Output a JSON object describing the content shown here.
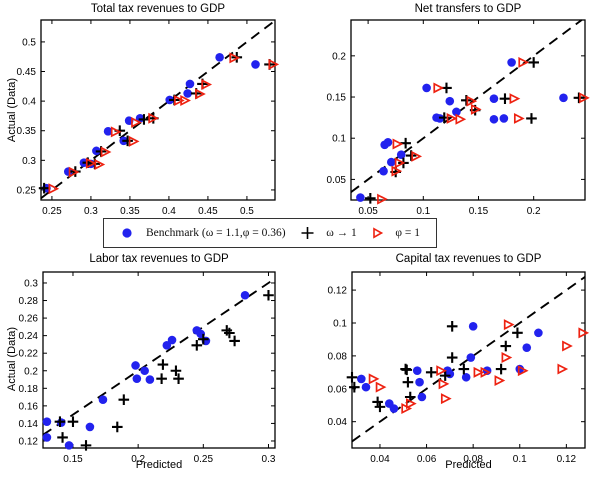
{
  "colors": {
    "benchmark": "#2222ee",
    "omega": "#000000",
    "phi": "#ee2211",
    "axis": "#000000"
  },
  "legend": {
    "items": [
      {
        "label": "Benchmark (ω = 1.1,φ = 0.36)",
        "marker": "circle"
      },
      {
        "label": "ω → 1",
        "marker": "plus"
      },
      {
        "label": "φ = 1",
        "marker": "triangle"
      }
    ]
  },
  "chart_data": [
    {
      "id": "total-tax-revenues",
      "type": "scatter",
      "title": "Total tax revenues to GDP",
      "xlabel": "",
      "ylabel": "Actual (Data)",
      "xlim": [
        0.236,
        0.536
      ],
      "ylim": [
        0.233,
        0.537
      ],
      "xticks": [
        0.25,
        0.3,
        0.35,
        0.4,
        0.45,
        0.5
      ],
      "xtick_labels": [
        "0.25",
        "0.3",
        "0.35",
        "0.4",
        "0.45",
        "0.5"
      ],
      "yticks": [
        0.25,
        0.3,
        0.35,
        0.4,
        0.45,
        0.5
      ],
      "ytick_labels": [
        "0.25",
        "0.3",
        "0.35",
        "0.4",
        "0.45",
        "0.5"
      ],
      "identity_line": true,
      "series": [
        {
          "name": "benchmark",
          "marker": "circle",
          "color": "#2222ee",
          "points": [
            [
              0.243,
              0.253
            ],
            [
              0.271,
              0.281
            ],
            [
              0.291,
              0.296
            ],
            [
              0.3,
              0.294
            ],
            [
              0.307,
              0.316
            ],
            [
              0.322,
              0.349
            ],
            [
              0.342,
              0.333
            ],
            [
              0.349,
              0.367
            ],
            [
              0.363,
              0.371
            ],
            [
              0.401,
              0.402
            ],
            [
              0.424,
              0.413
            ],
            [
              0.427,
              0.429
            ],
            [
              0.465,
              0.474
            ],
            [
              0.511,
              0.462
            ]
          ]
        },
        {
          "name": "omega-to-1",
          "marker": "plus",
          "color": "#000000",
          "points": [
            [
              0.24,
              0.253
            ],
            [
              0.28,
              0.281
            ],
            [
              0.296,
              0.296
            ],
            [
              0.305,
              0.294
            ],
            [
              0.313,
              0.315
            ],
            [
              0.337,
              0.35
            ],
            [
              0.347,
              0.333
            ],
            [
              0.368,
              0.369
            ],
            [
              0.38,
              0.371
            ],
            [
              0.407,
              0.402
            ],
            [
              0.435,
              0.413
            ],
            [
              0.443,
              0.429
            ],
            [
              0.487,
              0.474
            ],
            [
              0.529,
              0.462
            ]
          ]
        },
        {
          "name": "phi-1",
          "marker": "triangle",
          "color": "#ee2211",
          "points": [
            [
              0.251,
              0.252
            ],
            [
              0.277,
              0.28
            ],
            [
              0.299,
              0.295
            ],
            [
              0.31,
              0.293
            ],
            [
              0.318,
              0.314
            ],
            [
              0.331,
              0.348
            ],
            [
              0.354,
              0.332
            ],
            [
              0.357,
              0.364
            ],
            [
              0.379,
              0.371
            ],
            [
              0.412,
              0.401
            ],
            [
              0.42,
              0.401
            ],
            [
              0.439,
              0.412
            ],
            [
              0.447,
              0.428
            ],
            [
              0.483,
              0.473
            ],
            [
              0.533,
              0.462
            ]
          ]
        }
      ]
    },
    {
      "id": "net-transfers",
      "type": "scatter",
      "title": "Net transfers to GDP",
      "xlabel": "",
      "ylabel": "",
      "xlim": [
        0.0345,
        0.2465
      ],
      "ylim": [
        0.025,
        0.2435
      ],
      "xticks": [
        0.05,
        0.1,
        0.15,
        0.2
      ],
      "xtick_labels": [
        "0.05",
        "0.1",
        "0.15",
        "0.2"
      ],
      "yticks": [
        0.05,
        0.1,
        0.15,
        0.2
      ],
      "ytick_labels": [
        "0.05",
        "0.1",
        "0.15",
        "0.2"
      ],
      "identity_line": true,
      "series": [
        {
          "name": "benchmark",
          "marker": "circle",
          "color": "#2222ee",
          "points": [
            [
              0.043,
              0.028
            ],
            [
              0.064,
              0.06
            ],
            [
              0.065,
              0.092
            ],
            [
              0.068,
              0.095
            ],
            [
              0.071,
              0.071
            ],
            [
              0.08,
              0.08
            ],
            [
              0.103,
              0.161
            ],
            [
              0.112,
              0.125
            ],
            [
              0.115,
              0.124
            ],
            [
              0.124,
              0.145
            ],
            [
              0.13,
              0.132
            ],
            [
              0.164,
              0.148
            ],
            [
              0.164,
              0.123
            ],
            [
              0.173,
              0.124
            ],
            [
              0.18,
              0.192
            ],
            [
              0.227,
              0.149
            ]
          ]
        },
        {
          "name": "omega-to-1",
          "marker": "plus",
          "color": "#000000",
          "points": [
            [
              0.052,
              0.027
            ],
            [
              0.075,
              0.059
            ],
            [
              0.082,
              0.07
            ],
            [
              0.084,
              0.094
            ],
            [
              0.089,
              0.079
            ],
            [
              0.119,
              0.125
            ],
            [
              0.121,
              0.161
            ],
            [
              0.139,
              0.146
            ],
            [
              0.147,
              0.134
            ],
            [
              0.174,
              0.148
            ],
            [
              0.198,
              0.124
            ],
            [
              0.2,
              0.192
            ],
            [
              0.241,
              0.149
            ]
          ]
        },
        {
          "name": "phi-1",
          "marker": "triangle",
          "color": "#ee2211",
          "points": [
            [
              0.062,
              0.026
            ],
            [
              0.075,
              0.06
            ],
            [
              0.076,
              0.093
            ],
            [
              0.078,
              0.07
            ],
            [
              0.093,
              0.078
            ],
            [
              0.113,
              0.161
            ],
            [
              0.125,
              0.124
            ],
            [
              0.133,
              0.123
            ],
            [
              0.143,
              0.145
            ],
            [
              0.147,
              0.135
            ],
            [
              0.182,
              0.148
            ],
            [
              0.186,
              0.124
            ],
            [
              0.19,
              0.192
            ],
            [
              0.245,
              0.149
            ]
          ]
        }
      ]
    },
    {
      "id": "labor-tax-revenues",
      "type": "scatter",
      "title": "Labor tax revenues to GDP",
      "xlabel": "Predicted",
      "ylabel": "Actual (Data)",
      "xlim": [
        0.127,
        0.305
      ],
      "ylim": [
        0.112,
        0.3125
      ],
      "xticks": [
        0.15,
        0.2,
        0.25,
        0.3
      ],
      "xtick_labels": [
        "0.15",
        "0.2",
        "0.25",
        "0.3"
      ],
      "yticks": [
        0.12,
        0.14,
        0.16,
        0.18,
        0.2,
        0.22,
        0.24,
        0.26,
        0.28,
        0.3
      ],
      "ytick_labels": [
        "0.12",
        "0.14",
        "0.16",
        "0.18",
        "0.2",
        "0.22",
        "0.24",
        "0.26",
        "0.28",
        "0.3"
      ],
      "identity_line": true,
      "series": [
        {
          "name": "benchmark",
          "marker": "circle",
          "color": "#2222ee",
          "points": [
            [
              0.13,
              0.142
            ],
            [
              0.13,
              0.124
            ],
            [
              0.141,
              0.141
            ],
            [
              0.147,
              0.115
            ],
            [
              0.163,
              0.136
            ],
            [
              0.173,
              0.167
            ],
            [
              0.198,
              0.206
            ],
            [
              0.199,
              0.191
            ],
            [
              0.205,
              0.2
            ],
            [
              0.209,
              0.19
            ],
            [
              0.222,
              0.229
            ],
            [
              0.226,
              0.235
            ],
            [
              0.245,
              0.246
            ],
            [
              0.248,
              0.242
            ],
            [
              0.252,
              0.234
            ],
            [
              0.282,
              0.286
            ]
          ]
        },
        {
          "name": "omega-to-1",
          "marker": "plus",
          "color": "#000000",
          "points": [
            [
              0.14,
              0.142
            ],
            [
              0.142,
              0.124
            ],
            [
              0.15,
              0.142
            ],
            [
              0.16,
              0.115
            ],
            [
              0.184,
              0.136
            ],
            [
              0.189,
              0.167
            ],
            [
              0.218,
              0.191
            ],
            [
              0.219,
              0.207
            ],
            [
              0.229,
              0.2
            ],
            [
              0.231,
              0.191
            ],
            [
              0.245,
              0.229
            ],
            [
              0.25,
              0.236
            ],
            [
              0.268,
              0.246
            ],
            [
              0.27,
              0.243
            ],
            [
              0.274,
              0.234
            ],
            [
              0.3,
              0.286
            ]
          ]
        }
      ]
    },
    {
      "id": "capital-tax-revenues",
      "type": "scatter",
      "title": "Capital tax revenues to GDP",
      "xlabel": "Predicted",
      "ylabel": "",
      "xlim": [
        0.028,
        0.128
      ],
      "ylim": [
        0.024,
        0.131
      ],
      "xticks": [
        0.04,
        0.06,
        0.08,
        0.1,
        0.12
      ],
      "xtick_labels": [
        "0.04",
        "0.06",
        "0.08",
        "0.1",
        "0.12"
      ],
      "yticks": [
        0.04,
        0.06,
        0.08,
        0.1,
        0.12
      ],
      "ytick_labels": [
        "0.04",
        "0.06",
        "0.08",
        "0.1",
        "0.12"
      ],
      "identity_line": true,
      "series": [
        {
          "name": "benchmark",
          "marker": "circle",
          "color": "#2222ee",
          "points": [
            [
              0.032,
              0.066
            ],
            [
              0.034,
              0.061
            ],
            [
              0.044,
              0.051
            ],
            [
              0.046,
              0.048
            ],
            [
              0.056,
              0.071
            ],
            [
              0.057,
              0.064
            ],
            [
              0.058,
              0.055
            ],
            [
              0.069,
              0.071
            ],
            [
              0.07,
              0.069
            ],
            [
              0.077,
              0.067
            ],
            [
              0.079,
              0.079
            ],
            [
              0.08,
              0.098
            ],
            [
              0.086,
              0.071
            ],
            [
              0.1,
              0.072
            ],
            [
              0.103,
              0.085
            ],
            [
              0.108,
              0.094
            ]
          ]
        },
        {
          "name": "omega-to-1",
          "marker": "plus",
          "color": "#000000",
          "points": [
            [
              0.028,
              0.067
            ],
            [
              0.029,
              0.061
            ],
            [
              0.039,
              0.052
            ],
            [
              0.04,
              0.049
            ],
            [
              0.051,
              0.072
            ],
            [
              0.0515,
              0.0715
            ],
            [
              0.052,
              0.064
            ],
            [
              0.053,
              0.055
            ],
            [
              0.062,
              0.07
            ],
            [
              0.068,
              0.068
            ],
            [
              0.071,
              0.098
            ],
            [
              0.071,
              0.079
            ],
            [
              0.076,
              0.072
            ],
            [
              0.092,
              0.072
            ],
            [
              0.094,
              0.086
            ],
            [
              0.099,
              0.094
            ]
          ]
        },
        {
          "name": "phi-1",
          "marker": "triangle",
          "color": "#ee2211",
          "points": [
            [
              0.037,
              0.066
            ],
            [
              0.04,
              0.061
            ],
            [
              0.051,
              0.048
            ],
            [
              0.053,
              0.051
            ],
            [
              0.066,
              0.071
            ],
            [
              0.067,
              0.063
            ],
            [
              0.068,
              0.054
            ],
            [
              0.082,
              0.07
            ],
            [
              0.085,
              0.07
            ],
            [
              0.091,
              0.065
            ],
            [
              0.094,
              0.079
            ],
            [
              0.095,
              0.099
            ],
            [
              0.101,
              0.071
            ],
            [
              0.118,
              0.072
            ],
            [
              0.12,
              0.086
            ],
            [
              0.127,
              0.094
            ]
          ]
        }
      ]
    }
  ]
}
